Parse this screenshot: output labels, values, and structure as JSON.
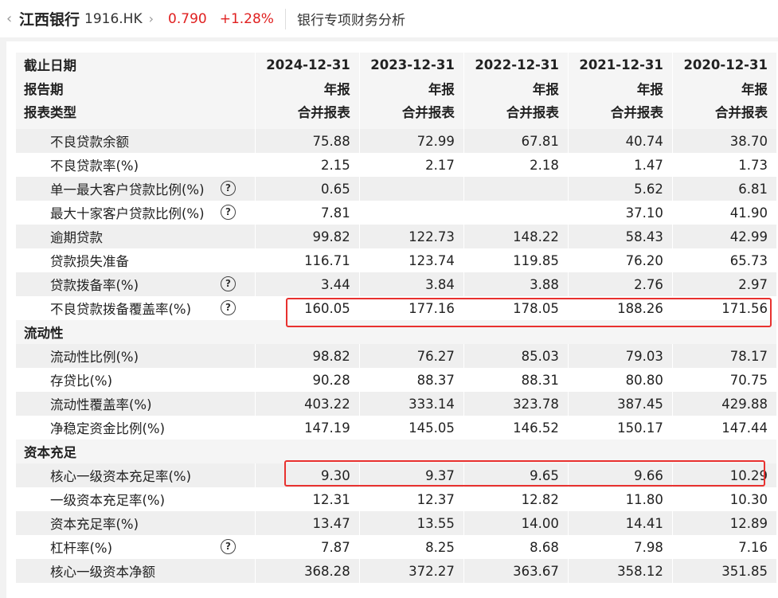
{
  "header": {
    "stock_name": "江西银行",
    "stock_code": "1916.HK",
    "price": "0.790",
    "change": "+1.28%",
    "page_title": "银行专项财务分析",
    "icons": [
      "back-chevron-icon",
      "forward-chevron-icon"
    ]
  },
  "table": {
    "header_rows": [
      {
        "label": "截止日期",
        "values": [
          "2024-12-31",
          "2023-12-31",
          "2022-12-31",
          "2021-12-31",
          "2020-12-31"
        ]
      },
      {
        "label": "报告期",
        "values": [
          "年报",
          "年报",
          "年报",
          "年报",
          "年报"
        ]
      },
      {
        "label": "报表类型",
        "values": [
          "合并报表",
          "合并报表",
          "合并报表",
          "合并报表",
          "合并报表"
        ]
      }
    ],
    "rows": [
      {
        "type": "item",
        "label": "不良贷款余额",
        "help": false,
        "values": [
          "75.88",
          "72.99",
          "67.81",
          "40.74",
          "38.70"
        ]
      },
      {
        "type": "item",
        "label": "不良贷款率(%)",
        "help": false,
        "values": [
          "2.15",
          "2.17",
          "2.18",
          "1.47",
          "1.73"
        ]
      },
      {
        "type": "item",
        "label": "单一最大客户贷款比例(%)",
        "help": true,
        "values": [
          "0.65",
          "",
          "",
          "5.62",
          "6.81"
        ]
      },
      {
        "type": "item",
        "label": "最大十家客户贷款比例(%)",
        "help": true,
        "values": [
          "7.81",
          "",
          "",
          "37.10",
          "41.90"
        ]
      },
      {
        "type": "item",
        "label": "逾期贷款",
        "help": false,
        "values": [
          "99.82",
          "122.73",
          "148.22",
          "58.43",
          "42.99"
        ]
      },
      {
        "type": "item",
        "label": "贷款损失准备",
        "help": false,
        "values": [
          "116.71",
          "123.74",
          "119.85",
          "76.20",
          "65.73"
        ]
      },
      {
        "type": "item",
        "label": "贷款拨备率(%)",
        "help": true,
        "values": [
          "3.44",
          "3.84",
          "3.88",
          "2.76",
          "2.97"
        ]
      },
      {
        "type": "item",
        "label": "不良贷款拨备覆盖率(%)",
        "help": true,
        "highlight": true,
        "values": [
          "160.05",
          "177.16",
          "178.05",
          "188.26",
          "171.56"
        ]
      },
      {
        "type": "section",
        "label": "流动性"
      },
      {
        "type": "item",
        "label": "流动性比例(%)",
        "help": false,
        "values": [
          "98.82",
          "76.27",
          "85.03",
          "79.03",
          "78.17"
        ]
      },
      {
        "type": "item",
        "label": "存贷比(%)",
        "help": false,
        "values": [
          "90.28",
          "88.37",
          "88.31",
          "80.80",
          "70.75"
        ]
      },
      {
        "type": "item",
        "label": "流动性覆盖率(%)",
        "help": false,
        "values": [
          "403.22",
          "333.14",
          "323.78",
          "387.45",
          "429.88"
        ]
      },
      {
        "type": "item",
        "label": "净稳定资金比例(%)",
        "help": false,
        "values": [
          "147.19",
          "145.05",
          "146.52",
          "150.17",
          "147.44"
        ]
      },
      {
        "type": "section",
        "label": "资本充足"
      },
      {
        "type": "item",
        "label": "核心一级资本充足率(%)",
        "help": false,
        "highlight": true,
        "values": [
          "9.30",
          "9.37",
          "9.65",
          "9.66",
          "10.29"
        ]
      },
      {
        "type": "item",
        "label": "一级资本充足率(%)",
        "help": false,
        "values": [
          "12.31",
          "12.37",
          "12.82",
          "11.80",
          "10.30"
        ]
      },
      {
        "type": "item",
        "label": "资本充足率(%)",
        "help": false,
        "values": [
          "13.47",
          "13.55",
          "14.00",
          "14.41",
          "12.89"
        ]
      },
      {
        "type": "item",
        "label": "杠杆率(%)",
        "help": true,
        "values": [
          "7.87",
          "8.25",
          "8.68",
          "7.98",
          "7.16"
        ]
      },
      {
        "type": "item",
        "label": "核心一级资本净额",
        "help": false,
        "values": [
          "368.28",
          "372.27",
          "363.67",
          "358.12",
          "351.85"
        ]
      }
    ],
    "help_glyph": "?"
  },
  "colors": {
    "price_up": "#e02020",
    "highlight_border": "#e8312f",
    "row_gray": "#efefef",
    "header_bg": "#f5f5f5"
  }
}
